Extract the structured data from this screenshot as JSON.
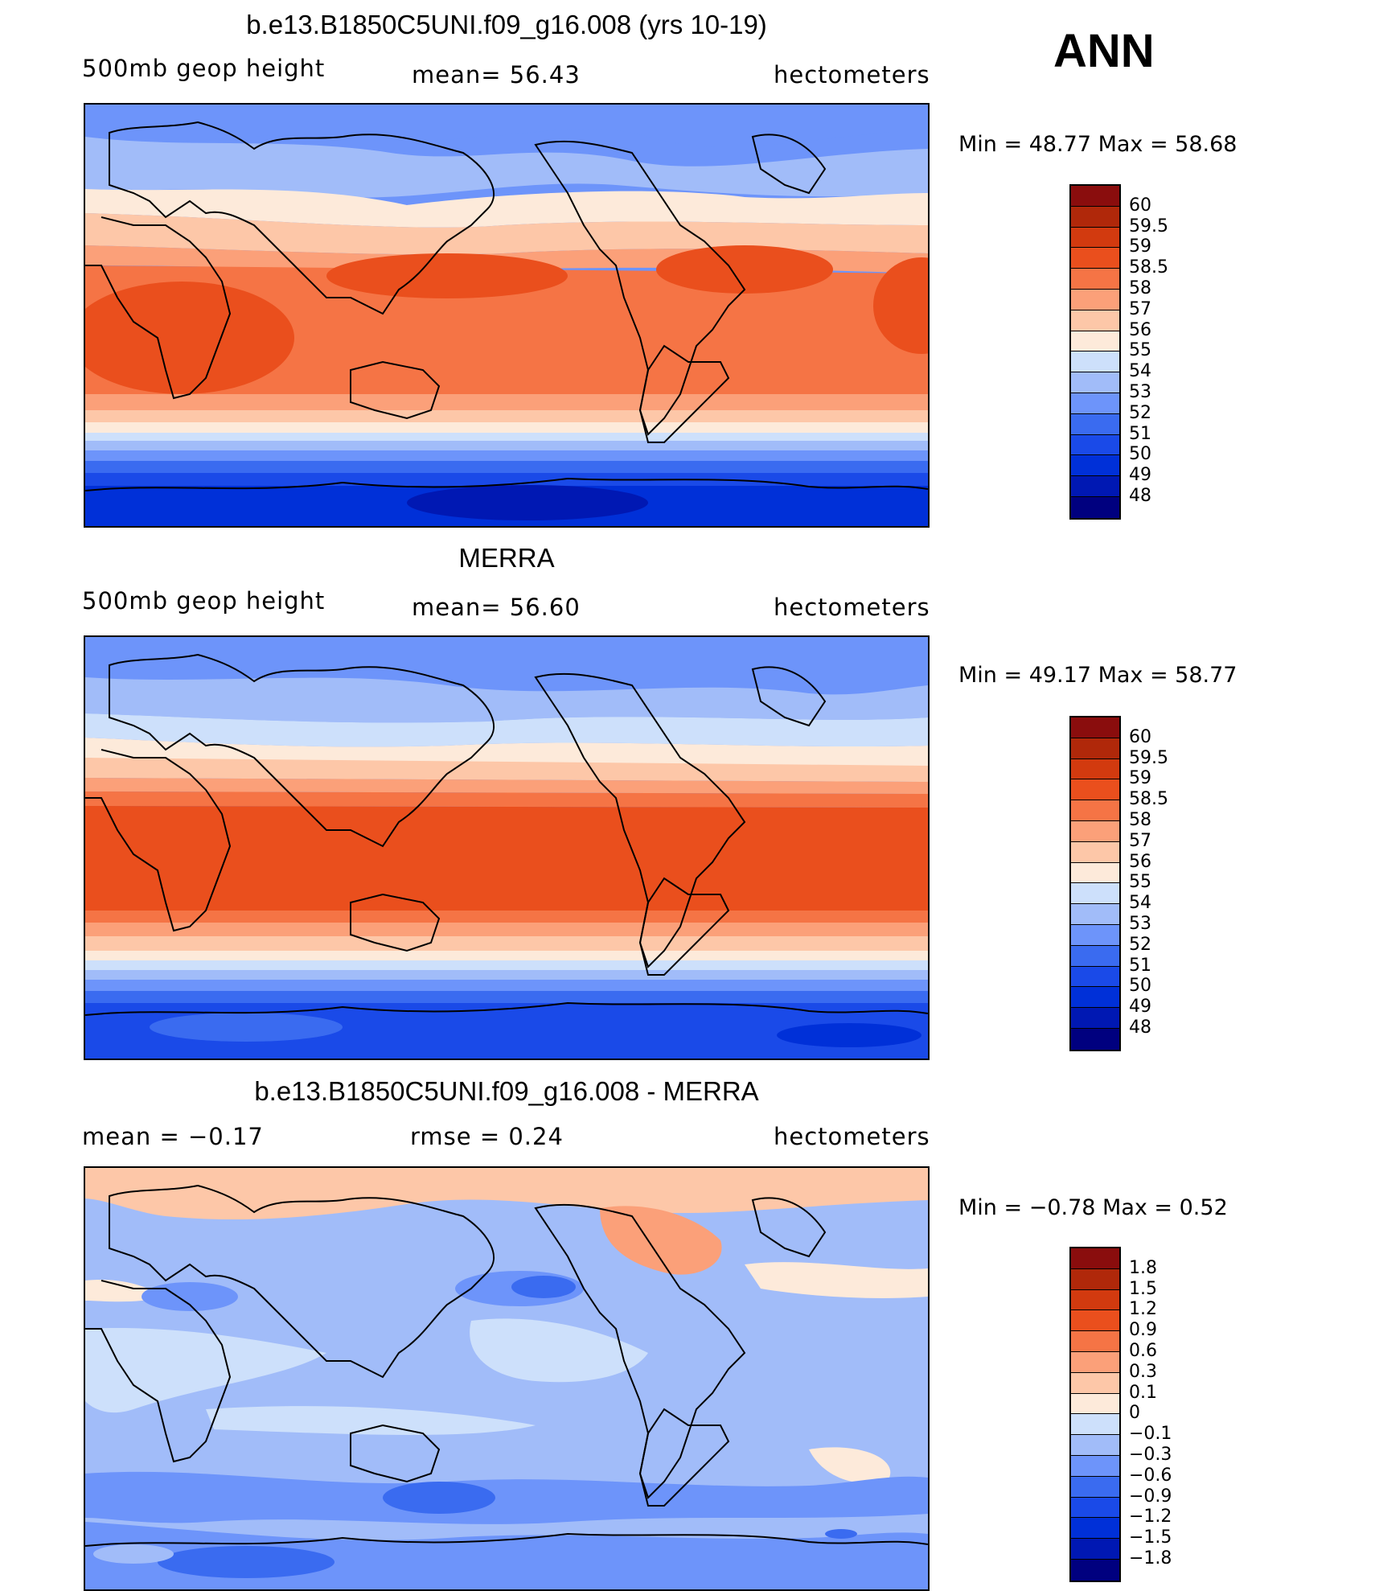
{
  "season": "ANN",
  "colors": {
    "abs_scale": [
      "#00007f",
      "#0018b3",
      "#0030d8",
      "#1a4ae8",
      "#3a6bf0",
      "#6d94fa",
      "#a1bcf9",
      "#cde0fb",
      "#fdeada",
      "#fdc7a8",
      "#fba079",
      "#f57445",
      "#ea4f1d",
      "#d23a0f",
      "#b0280a",
      "#8a0d0d"
    ],
    "diff_scale": [
      "#00007f",
      "#0018b3",
      "#0030d8",
      "#1a4ae8",
      "#3a6bf0",
      "#6d94fa",
      "#a1bcf9",
      "#cde0fb",
      "#fdeada",
      "#fdc7a8",
      "#fba079",
      "#f57445",
      "#ea4f1d",
      "#d23a0f",
      "#b0280a",
      "#8a0d0d"
    ]
  },
  "panels": [
    {
      "title": "b.e13.B1850C5UNI.f09_g16.008 (yrs 10-19)",
      "left_label": "500mb  geop  height",
      "center_label": "mean=   56.43",
      "right_label": "hectometers",
      "min_max": "Min  =    48.77  Max  =    58.68",
      "colorbar_labels": [
        "60",
        "59.5",
        "59",
        "58.5",
        "58",
        "57",
        "56",
        "55",
        "54",
        "53",
        "52",
        "51",
        "50",
        "49",
        "48"
      ]
    },
    {
      "title": "MERRA",
      "left_label": "500mb  geop  height",
      "center_label": "mean=   56.60",
      "right_label": "hectometers",
      "min_max": "Min  =    49.17  Max  =    58.77",
      "colorbar_labels": [
        "60",
        "59.5",
        "59",
        "58.5",
        "58",
        "57",
        "56",
        "55",
        "54",
        "53",
        "52",
        "51",
        "50",
        "49",
        "48"
      ]
    },
    {
      "title": "b.e13.B1850C5UNI.f09_g16.008 - MERRA",
      "left_label": "mean  =    −0.17",
      "center_label": "rmse  =     0.24",
      "right_label": "hectometers",
      "min_max": "Min  =   −0.78  Max  =      0.52",
      "colorbar_labels": [
        "1.8",
        "1.5",
        "1.2",
        "0.9",
        "0.6",
        "0.3",
        "0.1",
        "0",
        "−0.1",
        "−0.3",
        "−0.6",
        "−0.9",
        "−1.2",
        "−1.5",
        "−1.8"
      ]
    }
  ]
}
